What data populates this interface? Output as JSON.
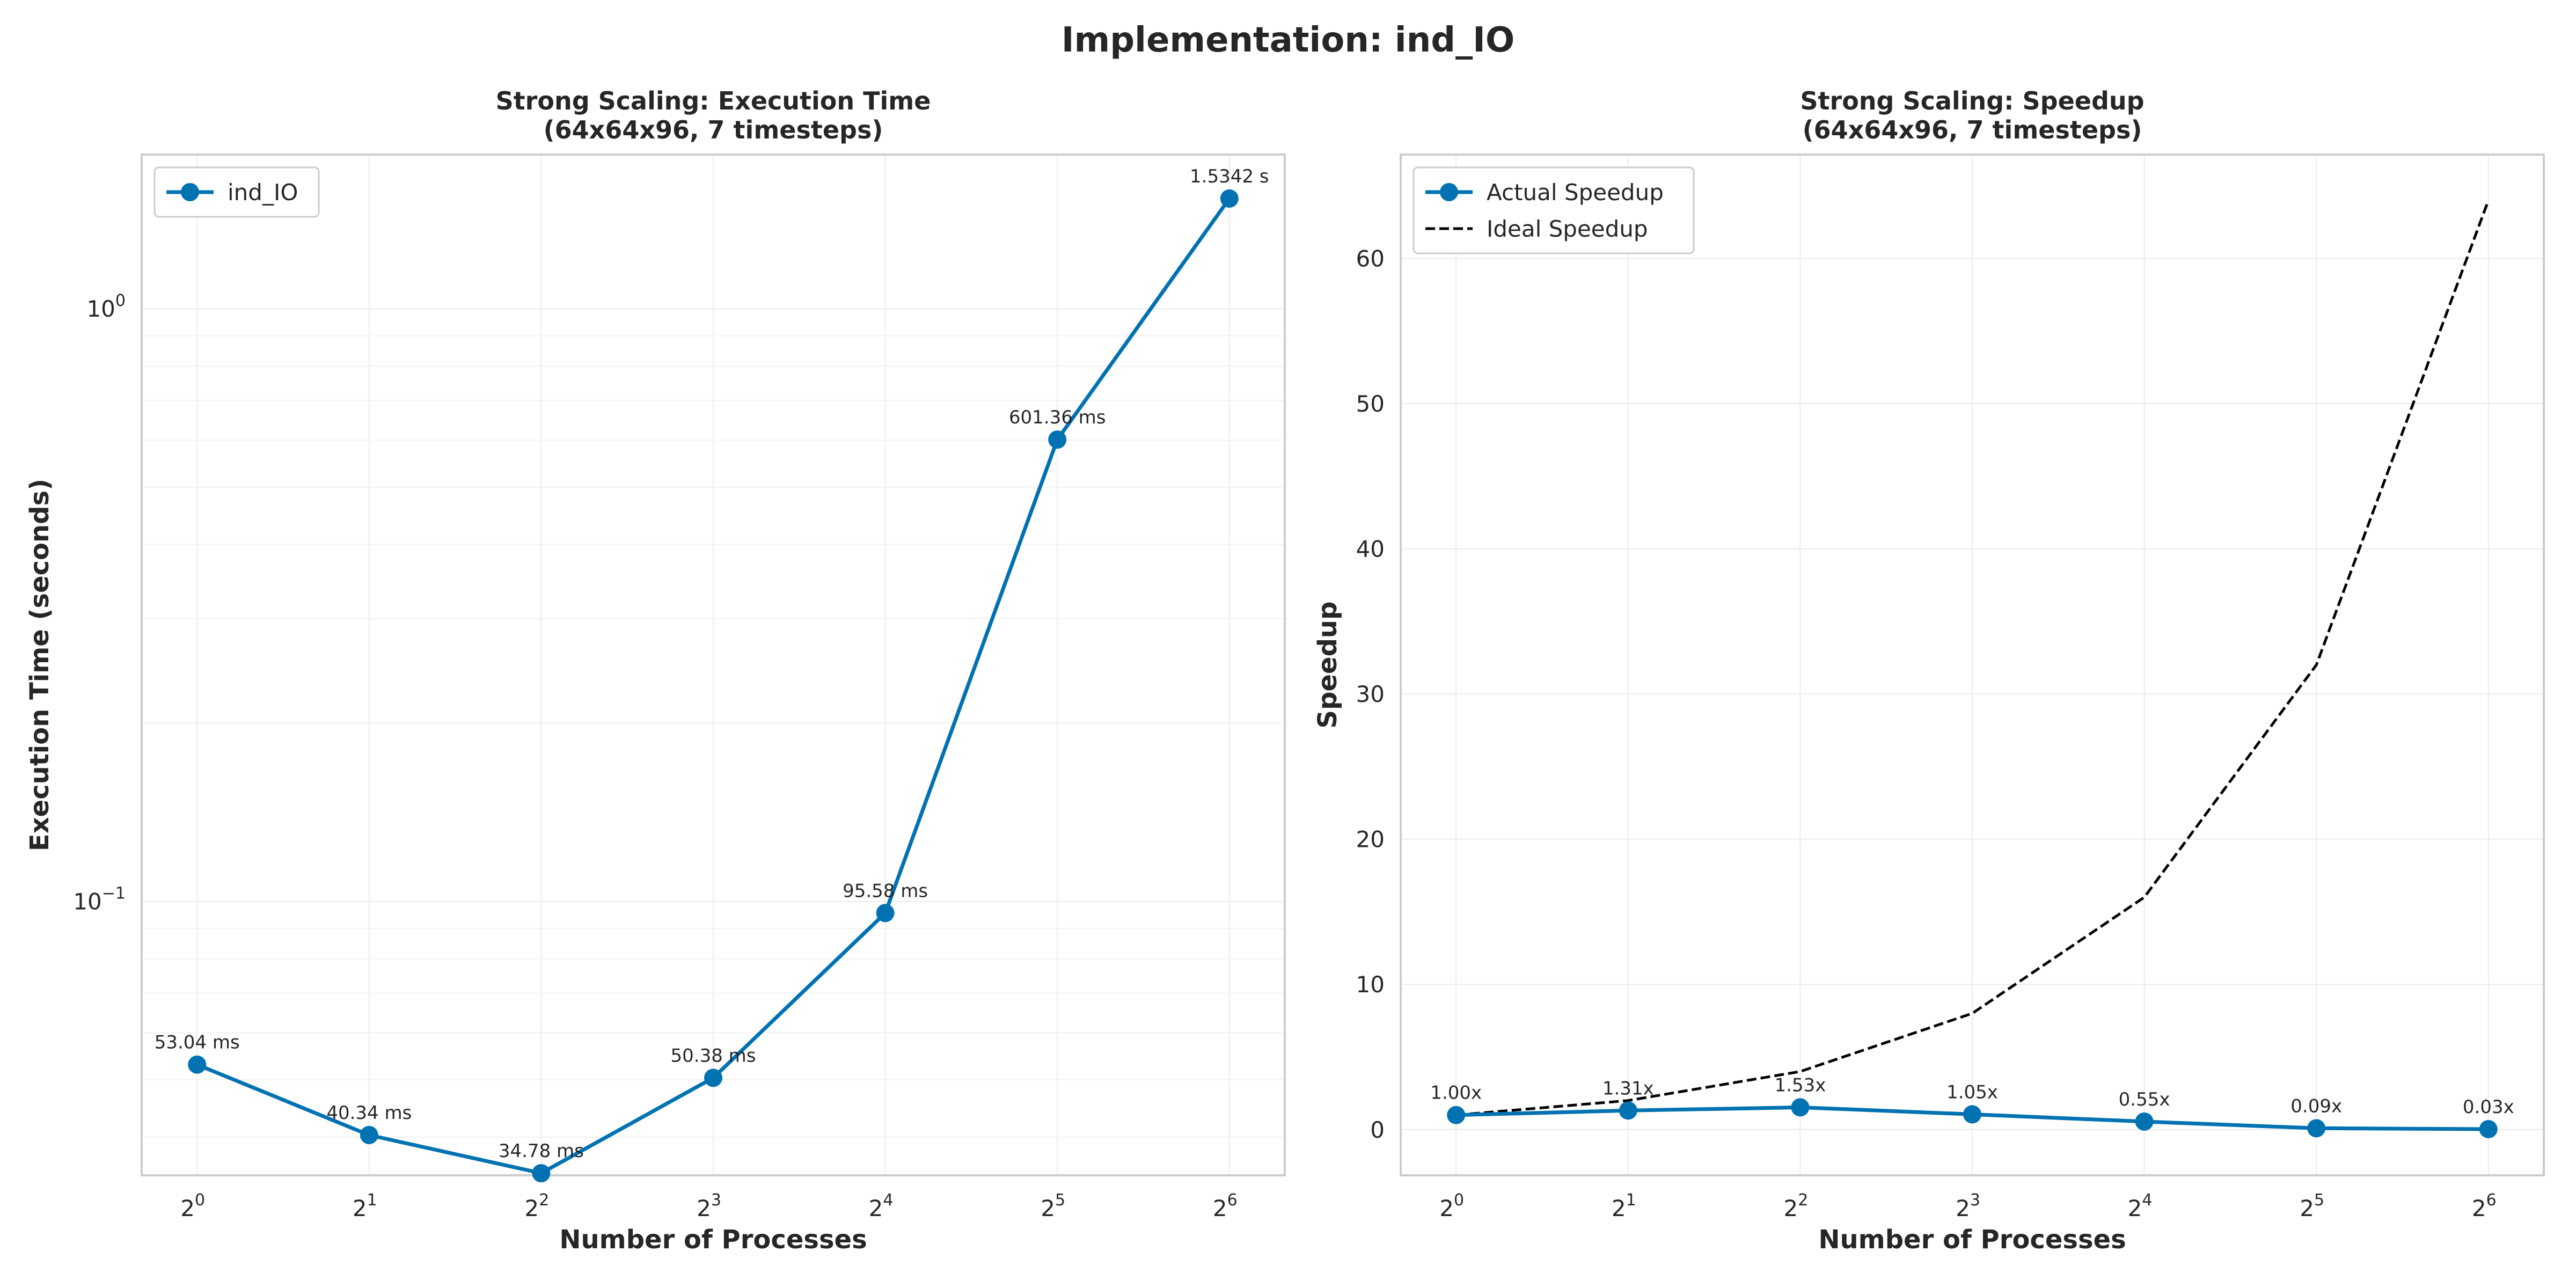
{
  "figure": {
    "title": "Implementation: ind_IO"
  },
  "colors": {
    "series": "#0072b2",
    "ideal": "#000000",
    "text": "#262626",
    "grid": "#ebebeb",
    "frame": "#cccccc"
  },
  "chart_data": [
    {
      "type": "line",
      "title_lines": [
        "Strong Scaling: Execution Time",
        "(64x64x96, 7 timesteps)"
      ],
      "xlabel": "Number of Processes",
      "ylabel": "Execution Time (seconds)",
      "x_scale": "log2",
      "y_scale": "log10",
      "xlim": [
        0.8,
        80
      ],
      "ylim": [
        0.0345,
        1.82
      ],
      "x": [
        1,
        2,
        4,
        8,
        16,
        32,
        64
      ],
      "x_ticks": [
        {
          "base": "2",
          "exp": "0"
        },
        {
          "base": "2",
          "exp": "1"
        },
        {
          "base": "2",
          "exp": "2"
        },
        {
          "base": "2",
          "exp": "3"
        },
        {
          "base": "2",
          "exp": "4"
        },
        {
          "base": "2",
          "exp": "5"
        },
        {
          "base": "2",
          "exp": "6"
        }
      ],
      "y_ticks": [
        {
          "value": 1,
          "base": "10",
          "exp": "0"
        },
        {
          "value": 0.1,
          "base": "10",
          "exp": "−1"
        }
      ],
      "grid": true,
      "legend_position": "upper-left",
      "series": [
        {
          "name": "ind_IO",
          "values": [
            0.05304,
            0.04034,
            0.03478,
            0.05038,
            0.09558,
            0.60136,
            1.5342
          ],
          "labels": [
            "53.04 ms",
            "40.34 ms",
            "34.78 ms",
            "50.38 ms",
            "95.58 ms",
            "601.36 ms",
            "1.5342 s"
          ]
        }
      ]
    },
    {
      "type": "line",
      "title_lines": [
        "Strong Scaling: Speedup",
        "(64x64x96, 7 timesteps)"
      ],
      "xlabel": "Number of Processes",
      "ylabel": "Speedup",
      "x_scale": "log2",
      "y_scale": "linear",
      "xlim": [
        0.8,
        80
      ],
      "ylim": [
        -3.15,
        67.15
      ],
      "x": [
        1,
        2,
        4,
        8,
        16,
        32,
        64
      ],
      "x_ticks": [
        {
          "base": "2",
          "exp": "0"
        },
        {
          "base": "2",
          "exp": "1"
        },
        {
          "base": "2",
          "exp": "2"
        },
        {
          "base": "2",
          "exp": "3"
        },
        {
          "base": "2",
          "exp": "4"
        },
        {
          "base": "2",
          "exp": "5"
        },
        {
          "base": "2",
          "exp": "6"
        }
      ],
      "y_ticks": [
        {
          "value": 0,
          "label": "0"
        },
        {
          "value": 10,
          "label": "10"
        },
        {
          "value": 20,
          "label": "20"
        },
        {
          "value": 30,
          "label": "30"
        },
        {
          "value": 40,
          "label": "40"
        },
        {
          "value": 50,
          "label": "50"
        },
        {
          "value": 60,
          "label": "60"
        }
      ],
      "grid": true,
      "legend_position": "upper-left",
      "series": [
        {
          "name": "Actual Speedup",
          "values": [
            1.0,
            1.31,
            1.53,
            1.05,
            0.55,
            0.09,
            0.03
          ],
          "labels": [
            "1.00x",
            "1.31x",
            "1.53x",
            "1.05x",
            "0.55x",
            "0.09x",
            "0.03x"
          ]
        },
        {
          "name": "Ideal Speedup",
          "values": [
            1,
            2,
            4,
            8,
            16,
            32,
            64
          ],
          "style": "dashed"
        }
      ]
    }
  ]
}
